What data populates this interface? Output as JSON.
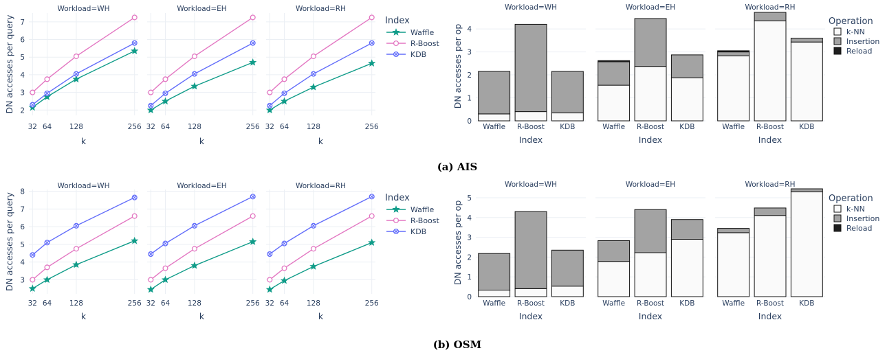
{
  "captions": [
    "(a) AIS",
    "(b) OSM"
  ],
  "line_legend": {
    "title": "Index",
    "colors": [
      "#109c89",
      "#e377c2",
      "#636efa"
    ],
    "markers": [
      "star",
      "circle",
      "x-circle"
    ]
  },
  "bar_legend": {
    "title": "Operation",
    "entries": [
      "k-NN",
      "Insertion",
      "Reload"
    ],
    "colors": [
      "#fafafa",
      "#a3a3a3",
      "#1f1f1f"
    ]
  },
  "chart_data": [
    {
      "type": "line",
      "dataset": "AIS",
      "xlabel": "k",
      "ylabel": "DN accesses per query",
      "x": [
        32,
        64,
        128,
        256
      ],
      "xlim": [
        24,
        264
      ],
      "ylim": [
        1.7,
        7.5
      ],
      "yticks": [
        2,
        3,
        4,
        5,
        6,
        7
      ],
      "series_names": [
        "Waffle",
        "R-Boost",
        "KDB"
      ],
      "facets": [
        {
          "title": "Workload=WH",
          "series": [
            [
              2.15,
              2.75,
              3.75,
              5.35
            ],
            [
              3.0,
              3.75,
              5.05,
              7.25
            ],
            [
              2.3,
              2.95,
              4.05,
              5.8
            ]
          ]
        },
        {
          "title": "Workload=EH",
          "series": [
            [
              2.0,
              2.5,
              3.35,
              4.7
            ],
            [
              3.0,
              3.75,
              5.05,
              7.25
            ],
            [
              2.25,
              2.95,
              4.05,
              5.8
            ]
          ]
        },
        {
          "title": "Workload=RH",
          "series": [
            [
              2.0,
              2.5,
              3.3,
              4.65
            ],
            [
              3.0,
              3.75,
              5.05,
              7.25
            ],
            [
              2.25,
              2.95,
              4.05,
              5.8
            ]
          ]
        }
      ]
    },
    {
      "type": "bar",
      "dataset": "AIS",
      "xlabel": "Index",
      "ylabel": "DN accesses per op",
      "categories": [
        "Waffle",
        "R-Boost",
        "KDB"
      ],
      "ylim": [
        0,
        4.75
      ],
      "yticks": [
        0,
        1,
        2,
        3,
        4
      ],
      "stack_names": [
        "k-NN",
        "Insertion",
        "Reload"
      ],
      "facets": [
        {
          "title": "Workload=WH",
          "stacks": [
            [
              0.3,
              0.4,
              0.35
            ],
            [
              1.85,
              3.8,
              1.8
            ],
            [
              0,
              0,
              0
            ]
          ]
        },
        {
          "title": "Workload=EH",
          "stacks": [
            [
              1.55,
              2.37,
              1.87
            ],
            [
              1.02,
              2.08,
              1.0
            ],
            [
              0.05,
              0,
              0
            ]
          ]
        },
        {
          "title": "Workload=RH",
          "stacks": [
            [
              2.83,
              4.35,
              3.43
            ],
            [
              0.17,
              0.37,
              0.17
            ],
            [
              0.05,
              0,
              0
            ]
          ]
        }
      ]
    },
    {
      "type": "line",
      "dataset": "OSM",
      "xlabel": "k",
      "ylabel": "DN accesses per query",
      "x": [
        32,
        64,
        128,
        256
      ],
      "xlim": [
        24,
        264
      ],
      "ylim": [
        2.2,
        8.1
      ],
      "yticks": [
        3,
        4,
        5,
        6,
        7,
        8
      ],
      "series_names": [
        "Waffle",
        "R-Boost",
        "KDB"
      ],
      "facets": [
        {
          "title": "Workload=WH",
          "series": [
            [
              2.5,
              3.0,
              3.85,
              5.2
            ],
            [
              3.0,
              3.7,
              4.75,
              6.6
            ],
            [
              4.4,
              5.1,
              6.05,
              7.65
            ]
          ]
        },
        {
          "title": "Workload=EH",
          "series": [
            [
              2.45,
              3.0,
              3.8,
              5.15
            ],
            [
              3.0,
              3.65,
              4.75,
              6.6
            ],
            [
              4.45,
              5.05,
              6.05,
              7.7
            ]
          ]
        },
        {
          "title": "Workload=RH",
          "series": [
            [
              2.45,
              2.95,
              3.75,
              5.1
            ],
            [
              3.0,
              3.65,
              4.75,
              6.6
            ],
            [
              4.45,
              5.05,
              6.05,
              7.7
            ]
          ]
        }
      ]
    },
    {
      "type": "bar",
      "dataset": "OSM",
      "xlabel": "Index",
      "ylabel": "DN accesses per op",
      "categories": [
        "Waffle",
        "R-Boost",
        "KDB"
      ],
      "ylim": [
        0,
        5.45
      ],
      "yticks": [
        0,
        1,
        2,
        3,
        4,
        5
      ],
      "stack_names": [
        "k-NN",
        "Insertion",
        "Reload"
      ],
      "facets": [
        {
          "title": "Workload=WH",
          "stacks": [
            [
              0.33,
              0.4,
              0.53
            ],
            [
              1.85,
              3.9,
              1.82
            ],
            [
              0,
              0,
              0
            ]
          ]
        },
        {
          "title": "Workload=EH",
          "stacks": [
            [
              1.78,
              2.22,
              2.9
            ],
            [
              1.05,
              2.18,
              1.0
            ],
            [
              0,
              0,
              0
            ]
          ]
        },
        {
          "title": "Workload=RH",
          "stacks": [
            [
              3.23,
              4.1,
              5.3
            ],
            [
              0.22,
              0.38,
              0.15
            ],
            [
              0,
              0,
              0
            ]
          ]
        }
      ]
    }
  ]
}
